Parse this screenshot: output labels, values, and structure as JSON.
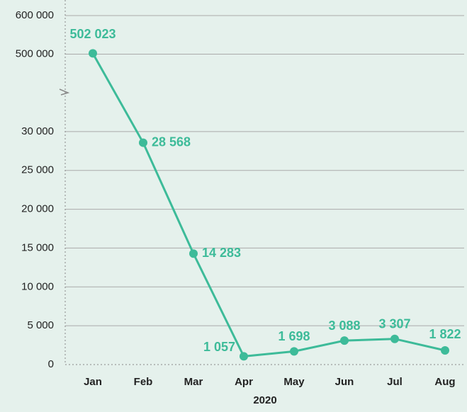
{
  "chart_data": {
    "type": "line",
    "x_label": "2020",
    "categories": [
      "Jan",
      "Feb",
      "Mar",
      "Apr",
      "May",
      "Jun",
      "Jul",
      "Aug"
    ],
    "series": [
      {
        "color": "#3dbb99",
        "values": [
          502023,
          28568,
          14283,
          1057,
          1698,
          3088,
          3307,
          1822
        ],
        "value_labels": [
          "502 023",
          "28 568",
          "14 283",
          "1 057",
          "1 698",
          "3 088",
          "3 307",
          "1 822"
        ]
      }
    ],
    "ylim": [
      0,
      600000
    ],
    "axis_break": [
      35000,
      400000
    ],
    "yticks": [
      {
        "value": 0,
        "label": "0"
      },
      {
        "value": 5000,
        "label": "5 000"
      },
      {
        "value": 10000,
        "label": "10 000"
      },
      {
        "value": 15000,
        "label": "15 000"
      },
      {
        "value": 20000,
        "label": "20 000"
      },
      {
        "value": 25000,
        "label": "25 000"
      },
      {
        "value": 30000,
        "label": "30 000"
      },
      {
        "value": 500000,
        "label": "500 000"
      },
      {
        "value": 600000,
        "label": "600 000"
      }
    ],
    "grid": true
  }
}
